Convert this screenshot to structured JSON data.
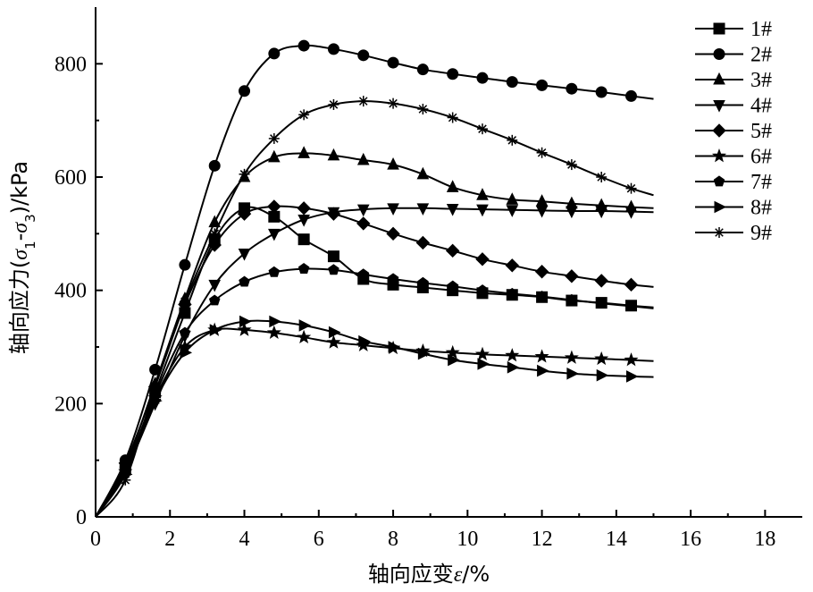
{
  "chart_data": {
    "type": "line",
    "title": "",
    "xlabel_prefix": "轴向应变",
    "xlabel_symbol": "ε",
    "xlabel_suffix": "/%",
    "ylabel_prefix": "轴向应力(",
    "ylabel_sigma1": "σ",
    "ylabel_sub1": "1",
    "ylabel_dash": "-",
    "ylabel_sigma3": "σ",
    "ylabel_sub3": "3",
    "ylabel_suffix": ")/kPa",
    "xlim": [
      0,
      19
    ],
    "ylim": [
      0,
      900
    ],
    "xticks": [
      0,
      2,
      4,
      6,
      8,
      10,
      12,
      14,
      16,
      18
    ],
    "xtick_labels": [
      "0",
      "2",
      "4",
      "6",
      "8",
      "10",
      "12",
      "14",
      "16",
      "18"
    ],
    "yticks": [
      0,
      200,
      400,
      600,
      800
    ],
    "ytick_labels": [
      "0",
      "200",
      "400",
      "600",
      "800"
    ],
    "grid": false,
    "legend_position": "top-right",
    "series": [
      {
        "name": "1#",
        "marker": "square",
        "x": [
          0,
          0.8,
          1.6,
          2.4,
          3.2,
          4.0,
          4.8,
          5.6,
          6.4,
          7.2,
          8.0,
          8.8,
          9.6,
          10.4,
          11.2,
          12.0,
          12.8,
          13.6,
          14.4,
          15.0
        ],
        "y": [
          0,
          85,
          220,
          360,
          490,
          545,
          530,
          490,
          460,
          420,
          410,
          405,
          400,
          395,
          392,
          388,
          382,
          378,
          373,
          370
        ]
      },
      {
        "name": "2#",
        "marker": "circle",
        "x": [
          0,
          0.8,
          1.6,
          2.4,
          3.2,
          4.0,
          4.8,
          5.6,
          6.4,
          7.2,
          8.0,
          8.8,
          9.6,
          10.4,
          11.2,
          12.0,
          12.8,
          13.6,
          14.4,
          15.0
        ],
        "y": [
          0,
          100,
          260,
          445,
          620,
          752,
          818,
          832,
          826,
          815,
          802,
          790,
          782,
          775,
          768,
          762,
          756,
          750,
          743,
          738
        ]
      },
      {
        "name": "3#",
        "marker": "triangle-up",
        "x": [
          0,
          0.8,
          1.6,
          2.4,
          3.2,
          4.0,
          4.8,
          5.6,
          6.4,
          7.2,
          8.0,
          8.8,
          9.6,
          10.4,
          11.2,
          12.0,
          12.8,
          13.6,
          14.4,
          15.0
        ],
        "y": [
          0,
          90,
          235,
          385,
          520,
          600,
          635,
          642,
          638,
          630,
          622,
          605,
          582,
          568,
          560,
          557,
          553,
          550,
          547,
          545
        ]
      },
      {
        "name": "4#",
        "marker": "triangle-down",
        "x": [
          0,
          0.8,
          1.6,
          2.4,
          3.2,
          4.0,
          4.8,
          5.6,
          6.4,
          7.2,
          8.0,
          8.8,
          9.6,
          10.4,
          11.2,
          12.0,
          12.8,
          13.6,
          14.4,
          15.0
        ],
        "y": [
          0,
          80,
          200,
          320,
          410,
          465,
          500,
          525,
          538,
          543,
          545,
          545,
          544,
          543,
          542,
          541,
          540,
          540,
          539,
          538
        ]
      },
      {
        "name": "5#",
        "marker": "diamond",
        "x": [
          0,
          0.8,
          1.6,
          2.4,
          3.2,
          4.0,
          4.8,
          5.6,
          6.4,
          7.2,
          8.0,
          8.8,
          9.6,
          10.4,
          11.2,
          12.0,
          12.8,
          13.6,
          14.4,
          15.0
        ],
        "y": [
          0,
          95,
          230,
          375,
          480,
          535,
          548,
          545,
          535,
          518,
          500,
          484,
          470,
          455,
          444,
          433,
          425,
          417,
          410,
          406
        ]
      },
      {
        "name": "6#",
        "marker": "star",
        "x": [
          0,
          0.8,
          1.6,
          2.4,
          3.2,
          4.0,
          4.8,
          5.6,
          6.4,
          7.2,
          8.0,
          8.8,
          9.6,
          10.4,
          11.2,
          12.0,
          12.8,
          13.6,
          14.4,
          15.0
        ],
        "y": [
          0,
          80,
          210,
          300,
          330,
          330,
          325,
          317,
          308,
          303,
          298,
          293,
          290,
          287,
          285,
          283,
          281,
          279,
          277,
          275
        ]
      },
      {
        "name": "7#",
        "marker": "pentagon",
        "x": [
          0,
          0.8,
          1.6,
          2.4,
          3.2,
          4.0,
          4.8,
          5.6,
          6.4,
          7.2,
          8.0,
          8.8,
          9.6,
          10.4,
          11.2,
          12.0,
          12.8,
          13.6,
          14.4,
          15.0
        ],
        "y": [
          0,
          85,
          215,
          325,
          382,
          415,
          432,
          438,
          436,
          428,
          420,
          413,
          407,
          400,
          394,
          389,
          383,
          377,
          372,
          368
        ]
      },
      {
        "name": "8#",
        "marker": "triangle-right",
        "x": [
          0,
          0.8,
          1.6,
          2.4,
          3.2,
          4.0,
          4.8,
          5.6,
          6.4,
          7.2,
          8.0,
          8.8,
          9.6,
          10.4,
          11.2,
          12.0,
          12.8,
          13.6,
          14.4,
          15.0
        ],
        "y": [
          0,
          75,
          205,
          290,
          330,
          345,
          345,
          338,
          326,
          310,
          300,
          288,
          277,
          270,
          264,
          258,
          253,
          250,
          248,
          247
        ]
      },
      {
        "name": "9#",
        "marker": "asterisk",
        "x": [
          0,
          0.8,
          1.6,
          2.4,
          3.2,
          4.0,
          4.8,
          5.6,
          6.4,
          7.2,
          8.0,
          8.8,
          9.6,
          10.4,
          11.2,
          12.0,
          12.8,
          13.6,
          14.4,
          15.0
        ],
        "y": [
          0,
          65,
          230,
          380,
          500,
          605,
          668,
          710,
          728,
          734,
          730,
          720,
          705,
          685,
          665,
          643,
          622,
          600,
          580,
          568
        ]
      }
    ]
  }
}
